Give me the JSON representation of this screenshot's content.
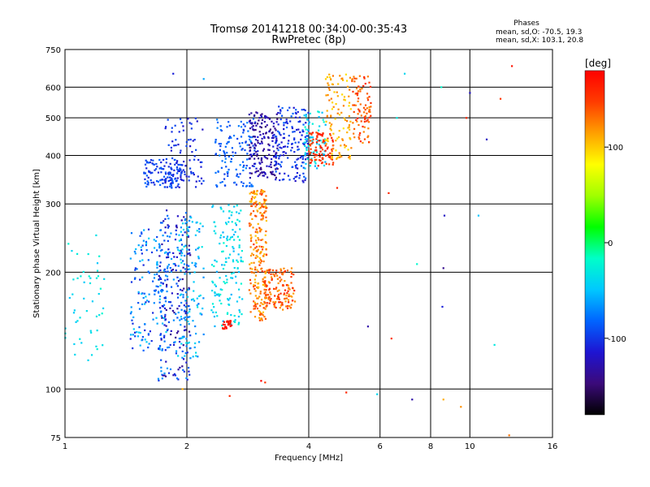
{
  "chart_data": {
    "type": "scatter",
    "title": "Tromsø 20141218 00:34:00-00:35:43",
    "subtitle": "RwPretec (8p)",
    "xlabel": "Frequency [MHz]",
    "ylabel": "Stationary phase Virtual Height [km]",
    "x_scale": "log",
    "y_scale": "log",
    "xlim": [
      1,
      16
    ],
    "ylim": [
      75,
      750
    ],
    "x_ticks": [
      1,
      2,
      4,
      6,
      8,
      10,
      16
    ],
    "y_ticks": [
      75,
      100,
      200,
      300,
      400,
      500,
      600,
      750
    ],
    "grid": true,
    "legend_text": {
      "title": "Phases",
      "line1": "mean, sd,O: -70.5, 19.3",
      "line2": "mean, sd,X: 103.1, 20.8"
    },
    "colorbar": {
      "label": "[deg]",
      "ticks": [
        100,
        0,
        -100
      ],
      "range": [
        -180,
        180
      ],
      "colors": [
        "#000000",
        "#3b0a7a",
        "#1e14d2",
        "#0064ff",
        "#00c8ff",
        "#00ffc8",
        "#00ff00",
        "#a0ff00",
        "#ffff00",
        "#ffa000",
        "#ff3c00",
        "#ff0000"
      ]
    },
    "clusters": [
      {
        "f": [
          1.0,
          1.25
        ],
        "h": [
          110,
          250
        ],
        "phase": [
          -20,
          -50
        ],
        "n": 50
      },
      {
        "f": [
          1.45,
          1.8
        ],
        "h": [
          125,
          260
        ],
        "phase": [
          -40,
          -110
        ],
        "n": 160
      },
      {
        "f": [
          1.7,
          2.05
        ],
        "h": [
          105,
          290
        ],
        "phase": [
          -60,
          -140
        ],
        "n": 230
      },
      {
        "f": [
          1.9,
          2.2
        ],
        "h": [
          120,
          280
        ],
        "phase": [
          -30,
          -80
        ],
        "n": 110
      },
      {
        "f": [
          2.3,
          2.75
        ],
        "h": [
          145,
          300
        ],
        "phase": [
          -20,
          -60
        ],
        "n": 150
      },
      {
        "f": [
          2.45,
          2.6
        ],
        "h": [
          143,
          150
        ],
        "phase": [
          160,
          180
        ],
        "n": 22
      },
      {
        "f": [
          2.85,
          3.15
        ],
        "h": [
          150,
          330
        ],
        "phase": [
          100,
          150
        ],
        "n": 240
      },
      {
        "f": [
          3.1,
          3.7
        ],
        "h": [
          160,
          205
        ],
        "phase": [
          110,
          160
        ],
        "n": 140
      },
      {
        "f": [
          1.55,
          1.95
        ],
        "h": [
          330,
          390
        ],
        "phase": [
          -80,
          -110
        ],
        "n": 110
      },
      {
        "f": [
          1.75,
          2.2
        ],
        "h": [
          330,
          500
        ],
        "phase": [
          -90,
          -120
        ],
        "n": 90
      },
      {
        "f": [
          2.35,
          2.95
        ],
        "h": [
          330,
          500
        ],
        "phase": [
          -70,
          -100
        ],
        "n": 130
      },
      {
        "f": [
          2.85,
          3.35
        ],
        "h": [
          350,
          520
        ],
        "phase": [
          -110,
          -150
        ],
        "n": 170
      },
      {
        "f": [
          3.3,
          4.0
        ],
        "h": [
          340,
          540
        ],
        "phase": [
          -80,
          -120
        ],
        "n": 160
      },
      {
        "f": [
          3.9,
          4.4
        ],
        "h": [
          370,
          520
        ],
        "phase": [
          -20,
          -60
        ],
        "n": 70
      },
      {
        "f": [
          4.0,
          4.6
        ],
        "h": [
          375,
          460
        ],
        "phase": [
          140,
          170
        ],
        "n": 90
      },
      {
        "f": [
          4.4,
          5.1
        ],
        "h": [
          390,
          650
        ],
        "phase": [
          90,
          130
        ],
        "n": 110
      },
      {
        "f": [
          5.1,
          5.7
        ],
        "h": [
          430,
          650
        ],
        "phase": [
          120,
          160
        ],
        "n": 90
      }
    ],
    "isolated_points": [
      {
        "f": 1.85,
        "h": 650,
        "phase": -110
      },
      {
        "f": 2.2,
        "h": 630,
        "phase": -60
      },
      {
        "f": 3.05,
        "h": 105,
        "phase": 180
      },
      {
        "f": 3.12,
        "h": 104,
        "phase": 150
      },
      {
        "f": 1.95,
        "h": 100,
        "phase": 110
      },
      {
        "f": 2.55,
        "h": 96,
        "phase": 160
      },
      {
        "f": 4.95,
        "h": 98,
        "phase": 160
      },
      {
        "f": 5.9,
        "h": 97,
        "phase": -40
      },
      {
        "f": 6.3,
        "h": 320,
        "phase": 160
      },
      {
        "f": 6.4,
        "h": 135,
        "phase": 150
      },
      {
        "f": 6.6,
        "h": 500,
        "phase": -30
      },
      {
        "f": 6.9,
        "h": 650,
        "phase": -40
      },
      {
        "f": 7.2,
        "h": 94,
        "phase": -130
      },
      {
        "f": 7.4,
        "h": 210,
        "phase": -20
      },
      {
        "f": 8.6,
        "h": 94,
        "phase": 110
      },
      {
        "f": 8.65,
        "h": 280,
        "phase": -120
      },
      {
        "f": 8.5,
        "h": 600,
        "phase": -20
      },
      {
        "f": 8.6,
        "h": 205,
        "phase": -140
      },
      {
        "f": 8.55,
        "h": 163,
        "phase": -110
      },
      {
        "f": 9.5,
        "h": 90,
        "phase": 120
      },
      {
        "f": 9.8,
        "h": 500,
        "phase": 160
      },
      {
        "f": 10.0,
        "h": 580,
        "phase": -120
      },
      {
        "f": 10.5,
        "h": 280,
        "phase": -50
      },
      {
        "f": 11.0,
        "h": 440,
        "phase": -120
      },
      {
        "f": 11.5,
        "h": 130,
        "phase": -30
      },
      {
        "f": 11.9,
        "h": 560,
        "phase": 150
      },
      {
        "f": 12.7,
        "h": 680,
        "phase": 170
      },
      {
        "f": 12.5,
        "h": 76,
        "phase": 130
      },
      {
        "f": 4.7,
        "h": 330,
        "phase": 160
      },
      {
        "f": 5.6,
        "h": 145,
        "phase": -130
      }
    ]
  }
}
